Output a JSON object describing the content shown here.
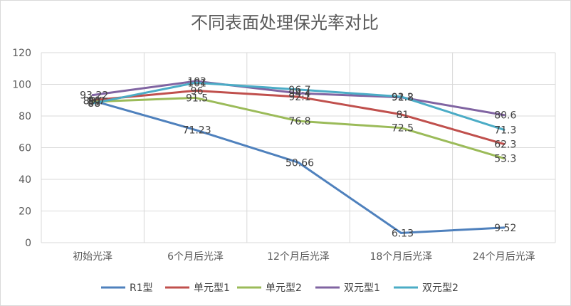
{
  "chart_data": {
    "type": "line",
    "title": "不同表面处理保光率对比",
    "xlabel": "",
    "ylabel": "",
    "categories": [
      "初始光泽",
      "6个月后光泽",
      "12个月后光泽",
      "18个月后光泽",
      "24个月后光泽"
    ],
    "ylim": [
      0,
      120
    ],
    "yticks": [
      "0",
      "20",
      "40",
      "60",
      "80",
      "100",
      "120"
    ],
    "grid": true,
    "legend_position": "bottom",
    "series": [
      {
        "name": "R1型",
        "color": "#4f81bd",
        "values": [
          89.7,
          71.23,
          50.66,
          6.13,
          9.52
        ],
        "labels": [
          "89.7",
          "71.23",
          "50.66",
          "6.13",
          "9.52"
        ]
      },
      {
        "name": "单元型1",
        "color": "#c0504d",
        "values": [
          90,
          96,
          92.1,
          81,
          62.3
        ],
        "labels": [
          "90",
          "96",
          "92.1",
          "81",
          "62.3"
        ]
      },
      {
        "name": "单元型2",
        "color": "#9bbb59",
        "values": [
          89,
          91.5,
          76.8,
          72.5,
          53.3
        ],
        "labels": [
          "89",
          "91.5",
          "76.8",
          "72.5",
          "53.3"
        ]
      },
      {
        "name": "双元型1",
        "color": "#8064a2",
        "values": [
          93.22,
          102,
          94.4,
          91.8,
          80.6
        ],
        "labels": [
          "93.22",
          "102",
          "94.4",
          "91.8",
          "80.6"
        ]
      },
      {
        "name": "双元型2",
        "color": "#4bacc6",
        "values": [
          88,
          101,
          96.7,
          92.2,
          71.3
        ],
        "labels": [
          "88",
          "101",
          "96.7",
          "92.2",
          "71.3"
        ]
      }
    ]
  }
}
